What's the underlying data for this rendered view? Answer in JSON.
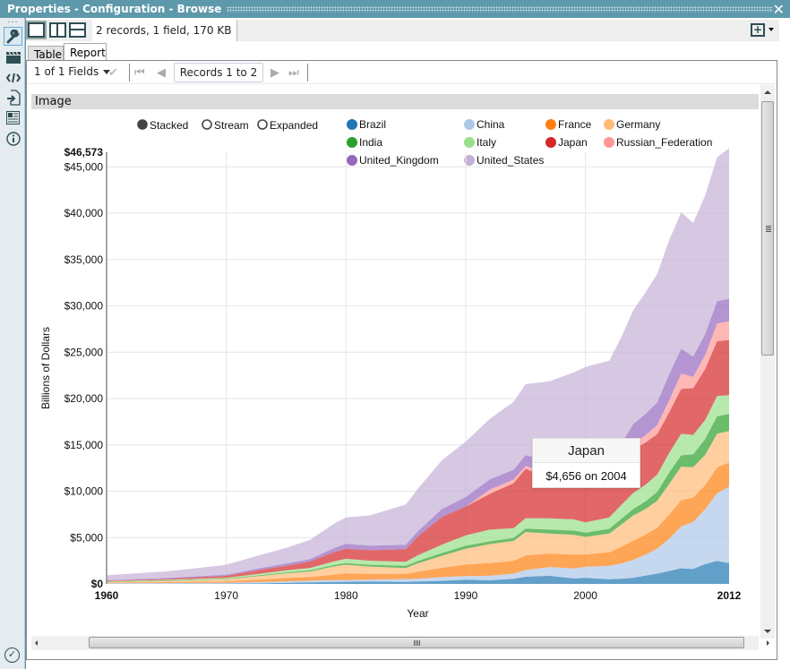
{
  "window": {
    "title": "Properties - Configuration - Browse",
    "close_icon": "close-icon"
  },
  "sidebar": {
    "items": [
      {
        "name": "configuration",
        "icon": "wrench-icon",
        "active": true
      },
      {
        "name": "annotation",
        "icon": "clapperboard-icon",
        "active": false
      },
      {
        "name": "code",
        "icon": "code-icon",
        "active": false
      },
      {
        "name": "input-output",
        "icon": "import-icon",
        "active": false
      },
      {
        "name": "layout",
        "icon": "document-icon",
        "active": false
      },
      {
        "name": "info",
        "icon": "info-icon",
        "active": false
      }
    ],
    "status_icon": "check-circle-icon"
  },
  "toolbar": {
    "view_buttons": [
      "single-pane",
      "side-by-side",
      "stacked"
    ],
    "record_info": "2 records, 1 field, 170 KB",
    "add_icon": "add-window-icon"
  },
  "tabs": [
    {
      "label": "Table",
      "active": false
    },
    {
      "label": "Report",
      "active": true
    }
  ],
  "nav": {
    "fields_label": "1 of 1 Fields",
    "records_label": "Records 1 to 2"
  },
  "section": {
    "header": "Image"
  },
  "chart_modes": [
    {
      "label": "Stacked",
      "selected": true
    },
    {
      "label": "Stream",
      "selected": false
    },
    {
      "label": "Expanded",
      "selected": false
    }
  ],
  "tooltip": {
    "title": "Japan",
    "body": "$4,656 on 2004",
    "series": "Japan",
    "year": 2004,
    "value": 4656
  },
  "chart_data": {
    "type": "area",
    "stacked": true,
    "title": "",
    "xlabel": "Year",
    "ylabel": "Billions of Dollars",
    "xlim": [
      1960,
      2012
    ],
    "ylim": [
      0,
      46573
    ],
    "y_max_label": "$46,573",
    "x_ticks": [
      1960,
      1970,
      1980,
      1990,
      2000,
      2012
    ],
    "y_ticks": [
      0,
      5000,
      10000,
      15000,
      20000,
      25000,
      30000,
      35000,
      40000,
      45000
    ],
    "y_tick_labels": [
      "$0",
      "$5,000",
      "$10,000",
      "$15,000",
      "$20,000",
      "$25,000",
      "$30,000",
      "$35,000",
      "$40,000",
      "$45,000"
    ],
    "grid": true,
    "legend_position": "top",
    "x": [
      1960,
      1965,
      1969,
      1970,
      1973,
      1975,
      1977,
      1979,
      1980,
      1982,
      1985,
      1986,
      1988,
      1990,
      1992,
      1994,
      1995,
      1997,
      1999,
      2000,
      2002,
      2003,
      2004,
      2005,
      2006,
      2007,
      2008,
      2009,
      2010,
      2011,
      2012
    ],
    "series": [
      {
        "name": "Brazil",
        "color": "#1f77b4",
        "values": [
          15,
          22,
          35,
          42,
          80,
          120,
          175,
          225,
          235,
          270,
          220,
          260,
          330,
          460,
          390,
          560,
          770,
          880,
          590,
          650,
          510,
          560,
          670,
          890,
          1110,
          1400,
          1690,
          1620,
          2140,
          2480,
          2250
        ]
      },
      {
        "name": "China",
        "color": "#aec7e8",
        "values": [
          60,
          70,
          80,
          90,
          140,
          160,
          170,
          180,
          190,
          200,
          310,
          300,
          400,
          390,
          490,
          560,
          730,
          950,
          1080,
          1200,
          1450,
          1640,
          1930,
          2260,
          2710,
          3490,
          4520,
          5060,
          5930,
          7320,
          8230
        ]
      },
      {
        "name": "France",
        "color": "#ff7f0e",
        "values": [
          60,
          100,
          140,
          150,
          260,
          360,
          410,
          600,
          700,
          620,
          550,
          750,
          1010,
          1240,
          1370,
          1370,
          1570,
          1450,
          1490,
          1330,
          1460,
          1800,
          2060,
          2140,
          2260,
          2580,
          2830,
          2620,
          2570,
          2780,
          2610
        ]
      },
      {
        "name": "Germany",
        "color": "#ffbb78",
        "values": [
          70,
          130,
          200,
          210,
          400,
          490,
          590,
          880,
          950,
          780,
          640,
          910,
          1290,
          1710,
          2050,
          2150,
          2520,
          2160,
          2140,
          1890,
          2010,
          2420,
          2730,
          2770,
          2900,
          3320,
          3620,
          3300,
          3280,
          3630,
          3400
        ]
      },
      {
        "name": "India",
        "color": "#2ca02c",
        "values": [
          35,
          55,
          60,
          62,
          85,
          100,
          120,
          150,
          180,
          200,
          230,
          250,
          300,
          320,
          290,
          330,
          370,
          420,
          460,
          470,
          510,
          600,
          700,
          830,
          950,
          1240,
          1220,
          1370,
          1710,
          1870,
          1860
        ]
      },
      {
        "name": "Italy",
        "color": "#98df8a",
        "values": [
          40,
          70,
          100,
          110,
          170,
          230,
          260,
          390,
          460,
          430,
          440,
          620,
          890,
          1130,
          1270,
          1050,
          1130,
          1210,
          1210,
          1100,
          1230,
          1510,
          1740,
          1790,
          1870,
          2130,
          2310,
          2110,
          2050,
          2200,
          2010
        ]
      },
      {
        "name": "Japan",
        "color": "#d62728",
        "values": [
          45,
          90,
          200,
          210,
          420,
          500,
          700,
          1000,
          1070,
          1130,
          1360,
          2020,
          3000,
          3100,
          3850,
          4850,
          5330,
          4410,
          4440,
          4730,
          3980,
          4300,
          4656,
          4570,
          4360,
          4360,
          4850,
          5040,
          5500,
          5910,
          5960
        ]
      },
      {
        "name": "Russian_Federation",
        "color": "#ff9896",
        "values": [
          0,
          0,
          0,
          0,
          0,
          0,
          0,
          0,
          0,
          0,
          0,
          0,
          0,
          0,
          460,
          390,
          310,
          400,
          200,
          260,
          350,
          430,
          590,
          760,
          990,
          1300,
          1660,
          1220,
          1520,
          1900,
          2010
        ]
      },
      {
        "name": "United_Kingdom",
        "color": "#9467bd",
        "values": [
          72,
          100,
          110,
          125,
          190,
          240,
          250,
          440,
          540,
          510,
          470,
          570,
          850,
          1020,
          1100,
          1060,
          1160,
          1380,
          1520,
          1490,
          1610,
          1860,
          2200,
          2300,
          2450,
          2810,
          2670,
          2190,
          2260,
          2420,
          2440
        ]
      },
      {
        "name": "United_States",
        "color": "#c5b0d5",
        "values": [
          540,
          720,
          980,
          1080,
          1430,
          1690,
          2090,
          2630,
          2860,
          3250,
          4350,
          4590,
          5250,
          5980,
          6540,
          7310,
          7660,
          8610,
          9670,
          10290,
          10980,
          11510,
          12270,
          13100,
          13860,
          14480,
          14720,
          14420,
          14960,
          15520,
          16240
        ]
      }
    ]
  }
}
